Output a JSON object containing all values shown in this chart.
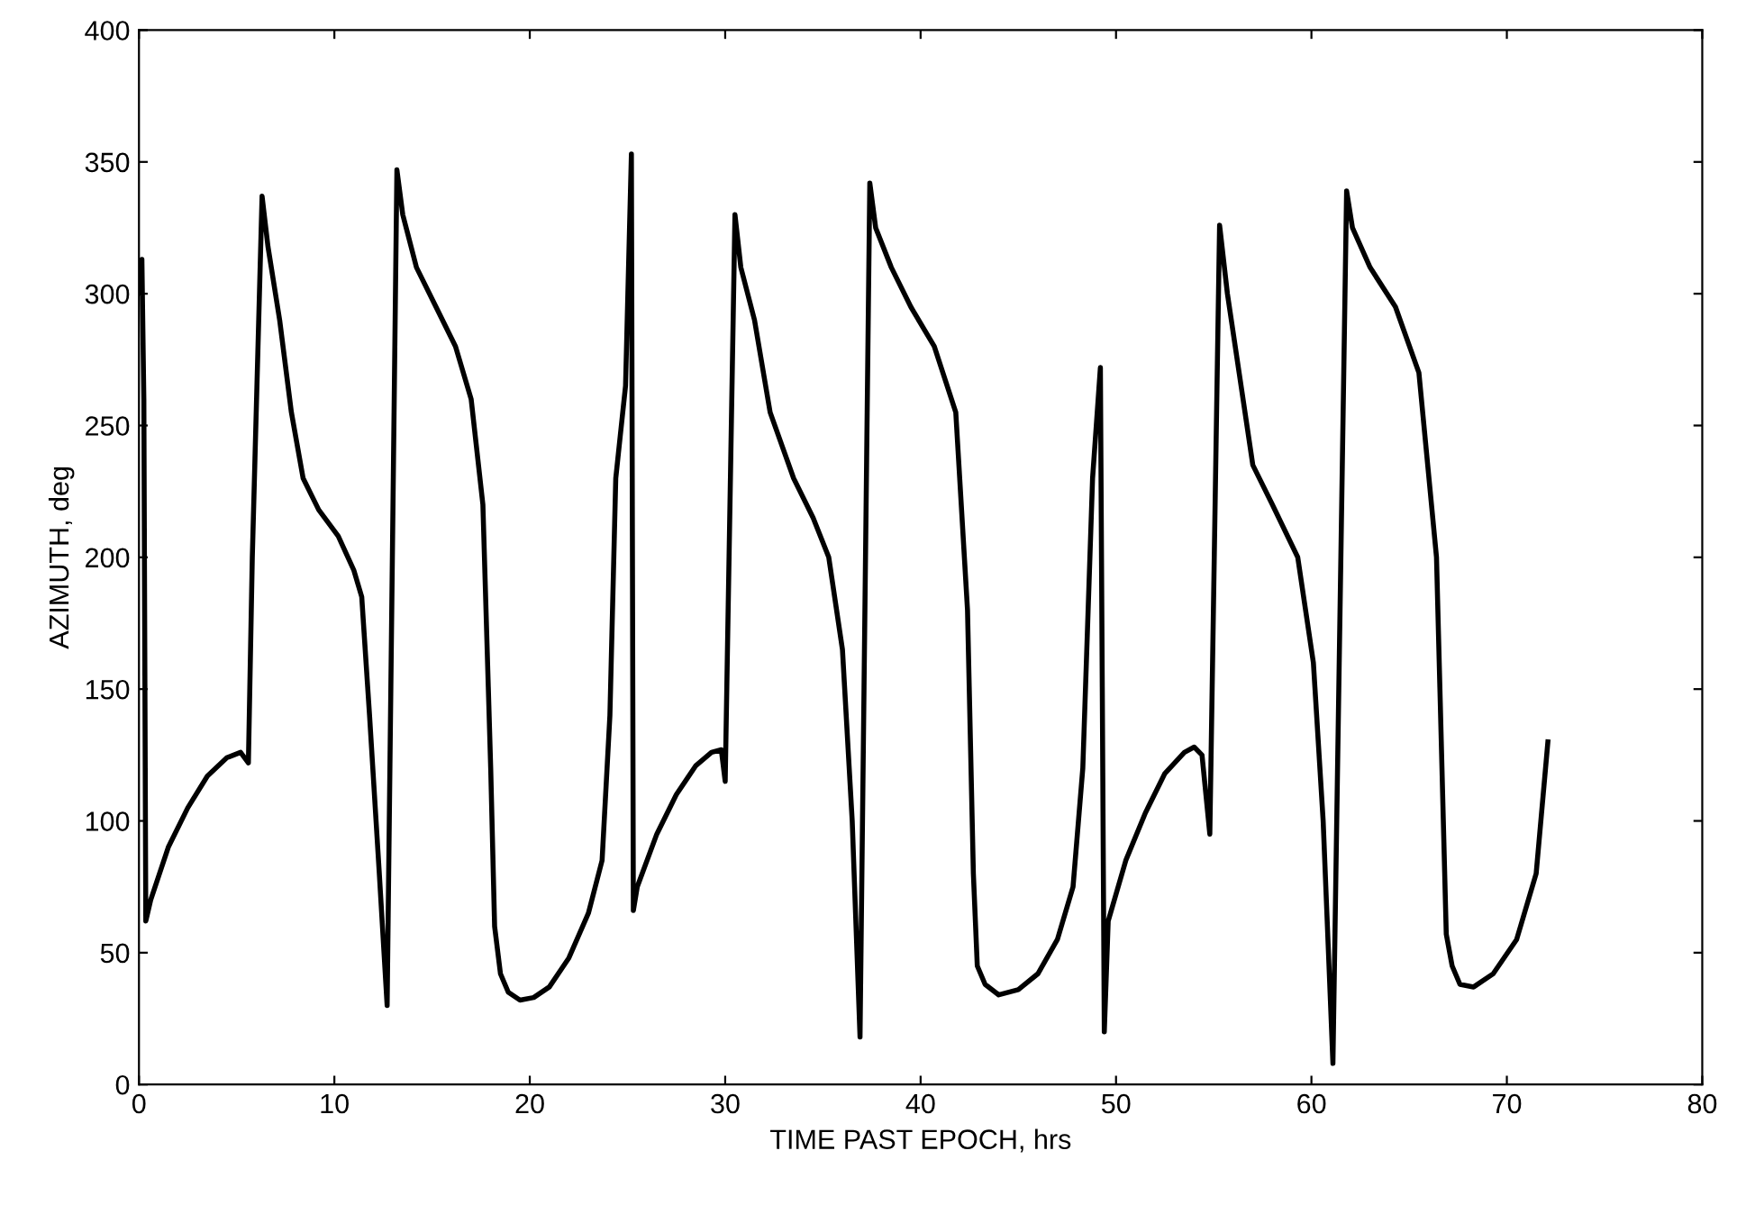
{
  "chart_data": {
    "type": "line",
    "xlabel": "TIME PAST EPOCH, hrs",
    "ylabel": "AZIMUTH, deg",
    "xlim": [
      0,
      80
    ],
    "ylim": [
      0,
      400
    ],
    "xticks": [
      0,
      10,
      20,
      30,
      40,
      50,
      60,
      70,
      80
    ],
    "yticks": [
      0,
      50,
      100,
      150,
      200,
      250,
      300,
      350,
      400
    ],
    "grid": false,
    "legend": false,
    "marker": "none",
    "line_style": "solid",
    "series": [
      {
        "color": "#000000",
        "x": [
          0.05,
          0.15,
          0.25,
          0.35,
          0.6,
          1.5,
          2.5,
          3.5,
          4.5,
          5.2,
          5.6,
          5.8,
          6.3,
          6.6,
          7.2,
          7.8,
          8.4,
          9.2,
          10.2,
          11.0,
          11.4,
          11.8,
          12.3,
          12.7,
          13.2,
          13.5,
          14.2,
          15.2,
          16.2,
          17.0,
          17.6,
          18.0,
          18.2,
          18.5,
          18.9,
          19.5,
          20.2,
          21.0,
          22.0,
          23.0,
          23.7,
          24.1,
          24.4,
          24.9,
          25.2,
          25.3,
          25.5,
          26.5,
          27.5,
          28.5,
          29.3,
          29.8,
          30.0,
          30.5,
          30.8,
          31.5,
          32.3,
          33.5,
          34.5,
          35.3,
          36.0,
          36.5,
          36.9,
          37.4,
          37.7,
          38.5,
          39.5,
          40.7,
          41.8,
          42.4,
          42.7,
          42.9,
          43.3,
          44.0,
          45.0,
          46.0,
          47.0,
          47.8,
          48.3,
          48.8,
          49.2,
          49.4,
          49.6,
          50.5,
          51.5,
          52.5,
          53.5,
          54.0,
          54.4,
          54.8,
          55.3,
          55.7,
          56.3,
          57.0,
          58.0,
          59.3,
          60.1,
          60.6,
          61.1,
          61.8,
          62.1,
          63.0,
          64.3,
          65.5,
          66.4,
          66.9,
          67.2,
          67.6,
          68.3,
          69.3,
          70.5,
          71.5,
          72.1
        ],
        "values": [
          300,
          313,
          260,
          62,
          70,
          90,
          105,
          117,
          124,
          126,
          122,
          200,
          337,
          318,
          290,
          255,
          230,
          218,
          208,
          195,
          185,
          140,
          80,
          30,
          347,
          330,
          310,
          295,
          280,
          260,
          220,
          120,
          60,
          42,
          35,
          32,
          33,
          37,
          48,
          65,
          85,
          140,
          230,
          265,
          353,
          66,
          75,
          95,
          110,
          121,
          126,
          127,
          115,
          330,
          310,
          290,
          255,
          230,
          215,
          200,
          165,
          100,
          18,
          342,
          325,
          310,
          295,
          280,
          255,
          180,
          80,
          45,
          38,
          34,
          36,
          42,
          55,
          75,
          120,
          230,
          272,
          20,
          62,
          85,
          103,
          118,
          126,
          128,
          125,
          95,
          326,
          300,
          270,
          235,
          220,
          200,
          160,
          100,
          8,
          339,
          325,
          310,
          295,
          270,
          200,
          57,
          45,
          38,
          37,
          42,
          55,
          80,
          130
        ]
      }
    ]
  }
}
